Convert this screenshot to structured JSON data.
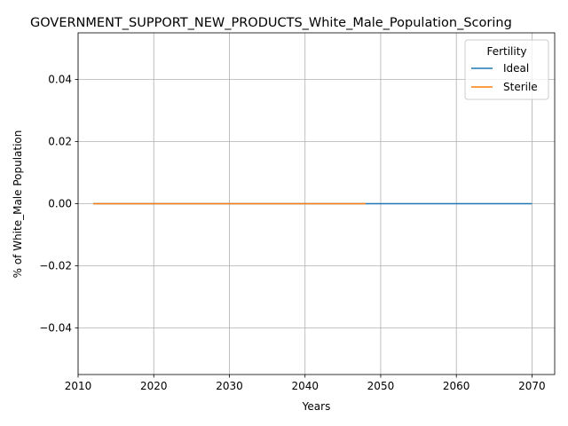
{
  "chart_data": {
    "type": "line",
    "title": "GOVERNMENT_SUPPORT_NEW_PRODUCTS_White_Male_Population_Scoring",
    "xlabel": "Years",
    "ylabel": "% of White_Male Population",
    "xlim": [
      2010,
      2073
    ],
    "ylim": [
      -0.055,
      0.055
    ],
    "x_ticks": [
      2010,
      2020,
      2030,
      2040,
      2050,
      2060,
      2070
    ],
    "y_ticks": [
      -0.04,
      -0.02,
      0.0,
      0.02,
      0.04
    ],
    "y_tick_labels": [
      "−0.04",
      "−0.02",
      "0.00",
      "0.02",
      "0.04"
    ],
    "grid": true,
    "legend": {
      "title": "Fertility",
      "placement": "top-right"
    },
    "series": [
      {
        "name": "Ideal",
        "color": "#1f77b4",
        "x": [
          2012,
          2070
        ],
        "y": [
          0.0,
          0.0
        ]
      },
      {
        "name": "Sterile",
        "color": "#ff7f0e",
        "x": [
          2012,
          2048
        ],
        "y": [
          0.0,
          0.0
        ]
      }
    ]
  }
}
